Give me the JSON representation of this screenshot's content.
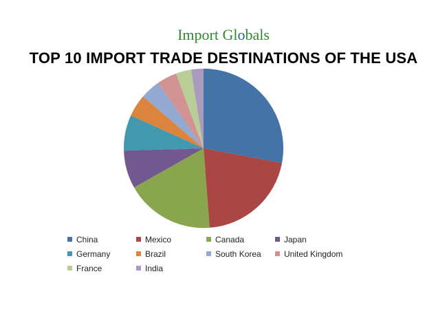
{
  "logo": {
    "part1": "Import Gl",
    "part2": "bals",
    "globe_glyph": "o"
  },
  "chart_data": {
    "type": "pie",
    "title": "TOP 10 IMPORT TRADE DESTINATIONS OF THE USA",
    "categories": [
      "China",
      "Mexico",
      "Canada",
      "Japan",
      "Germany",
      "Brazil",
      "South Korea",
      "United Kingdom",
      "France",
      "India"
    ],
    "values": [
      27.9,
      20.8,
      18.0,
      7.7,
      7.2,
      4.5,
      4.1,
      4.0,
      3.1,
      2.5
    ],
    "colors": [
      "#4572A7",
      "#AA4643",
      "#89A54E",
      "#71588F",
      "#4198AF",
      "#DB843D",
      "#93A9CF",
      "#D19392",
      "#B9CD96",
      "#A99BBD"
    ],
    "legend": "bottom",
    "start": "12 o'clock, clockwise"
  }
}
